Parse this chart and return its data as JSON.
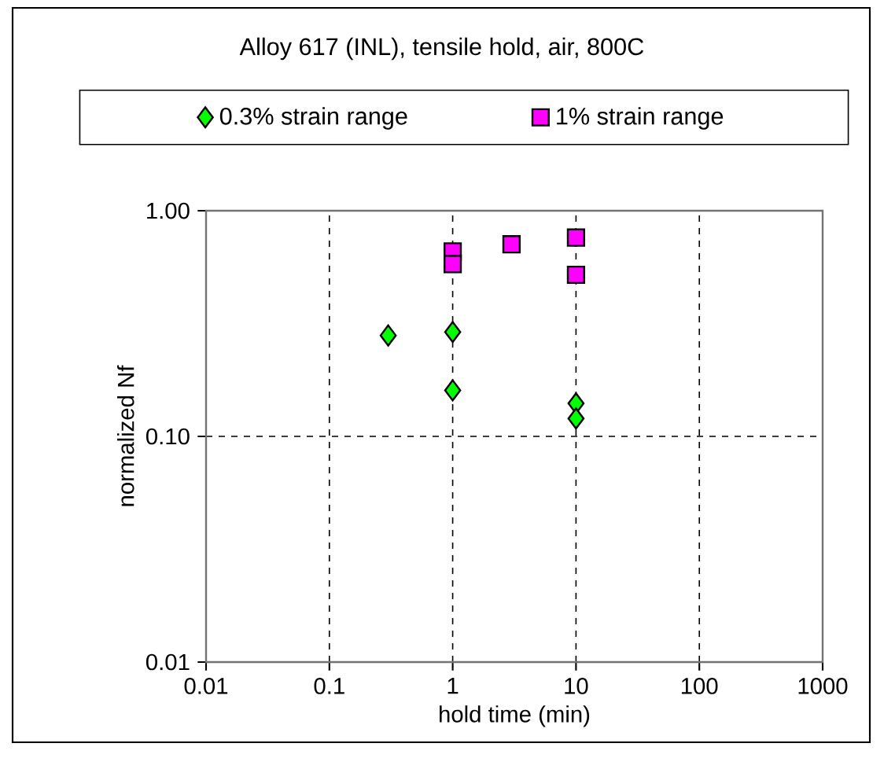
{
  "chart_data": {
    "type": "scatter",
    "title": "Alloy 617 (INL), tensile hold, air, 800C",
    "xlabel": "hold time (min)",
    "ylabel": "normalized Nf",
    "series": [
      {
        "name": "0.3% strain range",
        "color": "#00ff00",
        "marker": "diamond",
        "x": [
          0.3,
          1,
          1,
          10,
          10
        ],
        "values": [
          0.28,
          0.29,
          0.16,
          0.14,
          0.12
        ]
      },
      {
        "name": "1% strain range",
        "color": "#ff00ff",
        "marker": "square",
        "x": [
          1,
          1,
          3,
          10,
          10
        ],
        "values": [
          0.66,
          0.58,
          0.71,
          0.76,
          0.52
        ]
      }
    ],
    "log": "xy",
    "xlim": [
      0.01,
      1000
    ],
    "ylim": [
      0.01,
      1
    ],
    "xticks": [
      0.01,
      0.1,
      1,
      10,
      100,
      1000
    ],
    "yticks": [
      {
        "value": 0.01,
        "label": "0.01"
      },
      {
        "value": 0.1,
        "label": "0.10"
      },
      {
        "value": 1,
        "label": "1.00"
      }
    ],
    "grid": true,
    "legend": "top"
  }
}
